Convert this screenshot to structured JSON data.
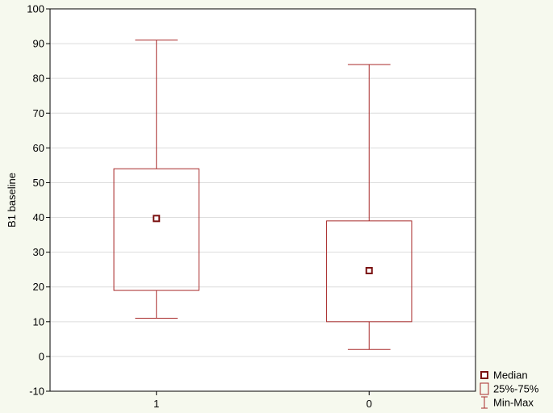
{
  "chart_data": {
    "type": "boxplot",
    "title": "",
    "xlabel": "",
    "ylabel": "B1 baseline",
    "ylim": [
      -10,
      100
    ],
    "yticks": [
      -10,
      0,
      10,
      20,
      30,
      40,
      50,
      60,
      70,
      80,
      90,
      100
    ],
    "grid": true,
    "legend_position": "bottom-right",
    "categories": [
      "1",
      "0"
    ],
    "boxes": [
      {
        "category": "1",
        "min": 11,
        "q1": 19,
        "median": 39.7,
        "q3": 54,
        "max": 91
      },
      {
        "category": "0",
        "min": 2,
        "q1": 10,
        "median": 24.7,
        "q3": 39,
        "max": 84
      }
    ],
    "legend": [
      {
        "symbol": "median",
        "label": "Median"
      },
      {
        "symbol": "box",
        "label": "25%-75%"
      },
      {
        "symbol": "whisker",
        "label": "Min-Max"
      }
    ],
    "colors": {
      "box_stroke": "#a82a2a",
      "median_fill": "#7a1010",
      "grid": "#dcdcdc",
      "plot_bg": "#ffffff",
      "frame": "#000000"
    }
  }
}
